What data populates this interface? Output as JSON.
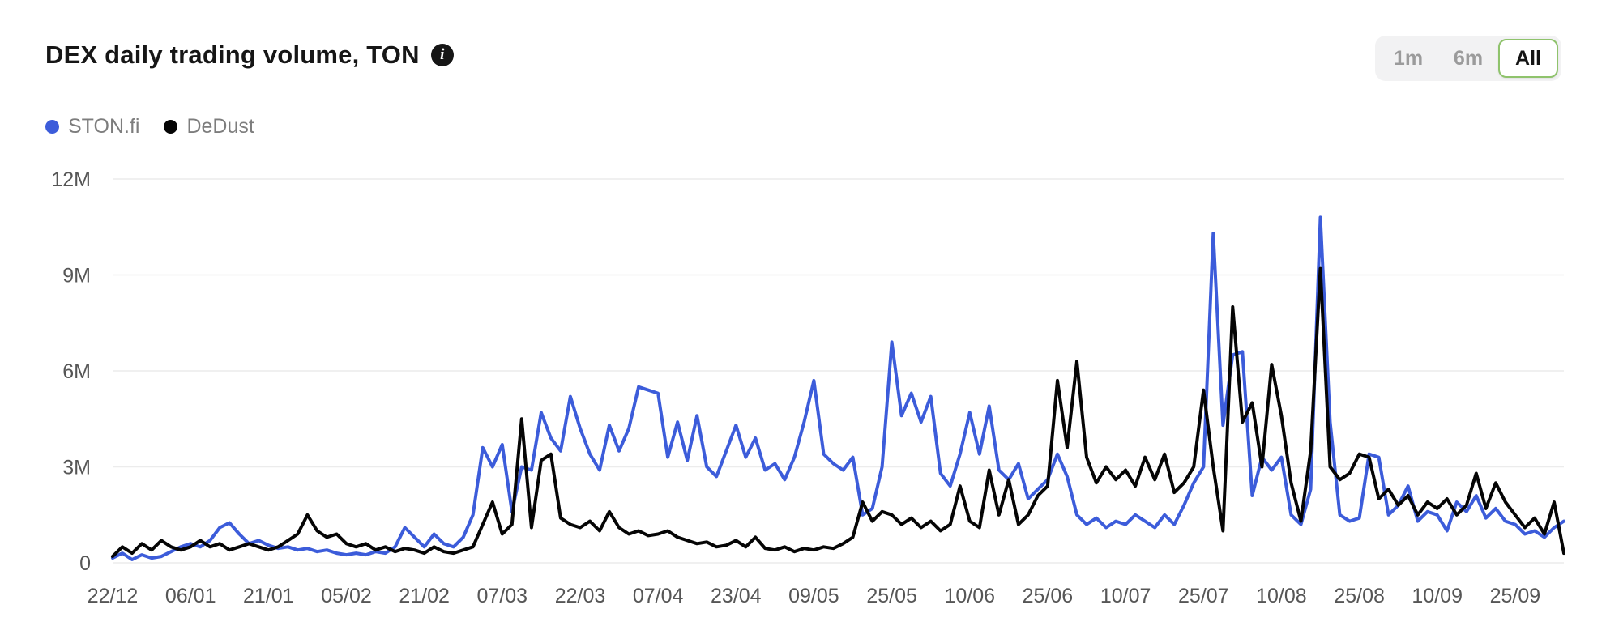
{
  "header": {
    "title": "DEX daily trading volume, TON"
  },
  "range_selector": {
    "active_border_color": "#8fc36c",
    "options": [
      {
        "label": "1m",
        "active": false
      },
      {
        "label": "6m",
        "active": false
      },
      {
        "label": "All",
        "active": true
      }
    ]
  },
  "legend": [
    {
      "label": "STON.fi",
      "color": "#3c5cda"
    },
    {
      "label": "DeDust",
      "color": "#050505"
    }
  ],
  "chart_data": {
    "type": "line",
    "title": "DEX daily trading volume, TON",
    "unit": "TON",
    "grid": true,
    "legend_position": "top-left",
    "ylim": [
      0,
      12000000
    ],
    "y_max_millions": 12,
    "y_ticks": [
      "0",
      "3M",
      "6M",
      "9M",
      "12M"
    ],
    "x_tick_labels": [
      "22/12",
      "06/01",
      "21/01",
      "05/02",
      "21/02",
      "07/03",
      "22/03",
      "07/04",
      "23/04",
      "09/05",
      "25/05",
      "10/06",
      "25/06",
      "10/07",
      "25/07",
      "10/08",
      "25/08",
      "10/09",
      "25/09"
    ],
    "x_tick_point_indices": [
      0,
      8,
      16,
      24,
      32,
      40,
      48,
      56,
      64,
      72,
      80,
      88,
      96,
      104,
      112,
      120,
      128,
      136,
      144
    ],
    "series": [
      {
        "name": "STON.fi",
        "color": "#3c5cda",
        "values_millions": [
          0.15,
          0.3,
          0.1,
          0.25,
          0.15,
          0.2,
          0.35,
          0.5,
          0.6,
          0.5,
          0.7,
          1.1,
          1.25,
          0.9,
          0.6,
          0.7,
          0.55,
          0.45,
          0.5,
          0.4,
          0.45,
          0.35,
          0.4,
          0.3,
          0.25,
          0.3,
          0.25,
          0.35,
          0.3,
          0.5,
          1.1,
          0.8,
          0.5,
          0.9,
          0.6,
          0.5,
          0.8,
          1.5,
          3.6,
          3.0,
          3.7,
          1.6,
          3.0,
          2.9,
          4.7,
          3.9,
          3.5,
          5.2,
          4.2,
          3.4,
          2.9,
          4.3,
          3.5,
          4.2,
          5.5,
          5.4,
          5.3,
          3.3,
          4.4,
          3.2,
          4.6,
          3.0,
          2.7,
          3.5,
          4.3,
          3.3,
          3.9,
          2.9,
          3.1,
          2.6,
          3.3,
          4.4,
          5.7,
          3.4,
          3.1,
          2.9,
          3.3,
          1.5,
          1.7,
          3.0,
          6.9,
          4.6,
          5.3,
          4.4,
          5.2,
          2.8,
          2.4,
          3.4,
          4.7,
          3.4,
          4.9,
          2.9,
          2.6,
          3.1,
          2.0,
          2.3,
          2.6,
          3.4,
          2.7,
          1.5,
          1.2,
          1.4,
          1.1,
          1.3,
          1.2,
          1.5,
          1.3,
          1.1,
          1.5,
          1.2,
          1.8,
          2.5,
          3.0,
          10.3,
          4.3,
          6.5,
          6.6,
          2.1,
          3.3,
          2.9,
          3.3,
          1.5,
          1.2,
          2.3,
          10.8,
          4.4,
          1.5,
          1.3,
          1.4,
          3.4,
          3.3,
          1.5,
          1.8,
          2.4,
          1.3,
          1.6,
          1.5,
          1.0,
          1.9,
          1.6,
          2.1,
          1.4,
          1.7,
          1.3,
          1.2,
          0.9,
          1.0,
          0.8,
          1.1,
          1.3
        ]
      },
      {
        "name": "DeDust",
        "color": "#050505",
        "values_millions": [
          0.2,
          0.5,
          0.3,
          0.6,
          0.4,
          0.7,
          0.5,
          0.4,
          0.5,
          0.7,
          0.5,
          0.6,
          0.4,
          0.5,
          0.6,
          0.5,
          0.4,
          0.5,
          0.7,
          0.9,
          1.5,
          1.0,
          0.8,
          0.9,
          0.6,
          0.5,
          0.6,
          0.4,
          0.5,
          0.35,
          0.45,
          0.4,
          0.3,
          0.5,
          0.35,
          0.3,
          0.4,
          0.5,
          1.2,
          1.9,
          0.9,
          1.2,
          4.5,
          1.1,
          3.2,
          3.4,
          1.4,
          1.2,
          1.1,
          1.3,
          1.0,
          1.6,
          1.1,
          0.9,
          1.0,
          0.85,
          0.9,
          1.0,
          0.8,
          0.7,
          0.6,
          0.65,
          0.5,
          0.55,
          0.7,
          0.5,
          0.8,
          0.45,
          0.4,
          0.5,
          0.35,
          0.45,
          0.4,
          0.5,
          0.45,
          0.6,
          0.8,
          1.9,
          1.3,
          1.6,
          1.5,
          1.2,
          1.4,
          1.1,
          1.3,
          1.0,
          1.2,
          2.4,
          1.3,
          1.1,
          2.9,
          1.5,
          2.6,
          1.2,
          1.5,
          2.1,
          2.4,
          5.7,
          3.6,
          6.3,
          3.3,
          2.5,
          3.0,
          2.6,
          2.9,
          2.4,
          3.3,
          2.6,
          3.4,
          2.2,
          2.5,
          3.0,
          5.4,
          3.0,
          1.0,
          8.0,
          4.4,
          5.0,
          3.0,
          6.2,
          4.6,
          2.5,
          1.3,
          3.5,
          9.2,
          3.0,
          2.6,
          2.8,
          3.4,
          3.3,
          2.0,
          2.3,
          1.8,
          2.1,
          1.5,
          1.9,
          1.7,
          2.0,
          1.5,
          1.8,
          2.8,
          1.7,
          2.5,
          1.9,
          1.5,
          1.1,
          1.4,
          0.9,
          1.9,
          0.3
        ]
      }
    ]
  }
}
